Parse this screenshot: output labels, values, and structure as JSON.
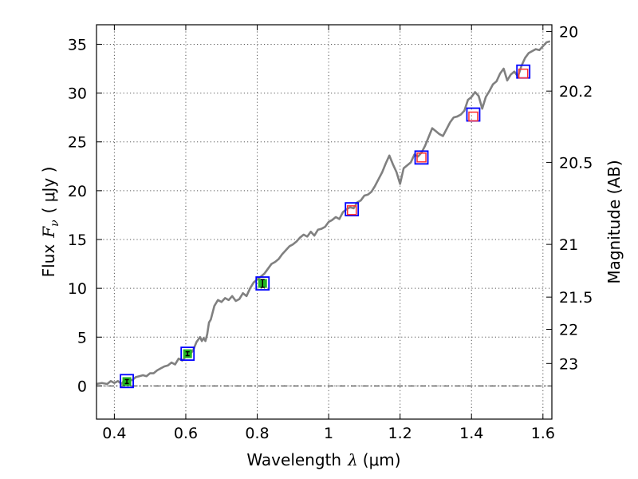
{
  "chart_data": {
    "type": "line",
    "xlabel": {
      "prefix": "Wavelength",
      "symbol": "λ",
      "unit": "(μm)"
    },
    "ylabel": {
      "prefix": "Flux",
      "symbol": "F",
      "subscript": "ν",
      "unit": "( μJy )"
    },
    "y2label": "Magnitude (AB)",
    "xlim": [
      0.35,
      1.625
    ],
    "ylim": [
      -3.4,
      37
    ],
    "xticks": [
      0.4,
      0.6,
      0.8,
      1.0,
      1.2,
      1.4,
      1.6
    ],
    "xtick_labels": [
      "0.4",
      "0.6",
      "0.8",
      "1",
      "1.2",
      "1.4",
      "1.6"
    ],
    "yticks": [
      0,
      5,
      10,
      15,
      20,
      25,
      30,
      35
    ],
    "ytick_labels": [
      "0",
      "5",
      "10",
      "15",
      "20",
      "25",
      "30",
      "35"
    ],
    "y2ticks": [
      {
        "label": "20",
        "flux": 36.3
      },
      {
        "label": "20.2",
        "flux": 30.2
      },
      {
        "label": "20.5",
        "flux": 22.9
      },
      {
        "label": "21",
        "flux": 14.5
      },
      {
        "label": "21.5",
        "flux": 9.1
      },
      {
        "label": "22",
        "flux": 5.8
      },
      {
        "label": "23",
        "flux": 2.3
      }
    ],
    "grid": true,
    "zero_line": true,
    "series": [
      {
        "kind": "spectrum",
        "color": "#808080",
        "x": [
          0.35,
          0.365,
          0.38,
          0.39,
          0.4,
          0.41,
          0.42,
          0.43,
          0.44,
          0.45,
          0.46,
          0.47,
          0.48,
          0.49,
          0.5,
          0.51,
          0.52,
          0.53,
          0.54,
          0.55,
          0.56,
          0.57,
          0.58,
          0.59,
          0.6,
          0.61,
          0.62,
          0.63,
          0.64,
          0.645,
          0.65,
          0.655,
          0.66,
          0.665,
          0.67,
          0.675,
          0.68,
          0.69,
          0.7,
          0.71,
          0.72,
          0.73,
          0.74,
          0.75,
          0.76,
          0.77,
          0.78,
          0.79,
          0.8,
          0.81,
          0.82,
          0.83,
          0.84,
          0.85,
          0.86,
          0.87,
          0.88,
          0.89,
          0.9,
          0.91,
          0.92,
          0.93,
          0.94,
          0.95,
          0.96,
          0.97,
          0.98,
          0.99,
          1.0,
          1.01,
          1.02,
          1.03,
          1.04,
          1.05,
          1.06,
          1.07,
          1.08,
          1.09,
          1.1,
          1.11,
          1.12,
          1.13,
          1.14,
          1.15,
          1.16,
          1.17,
          1.18,
          1.19,
          1.2,
          1.21,
          1.22,
          1.23,
          1.24,
          1.25,
          1.26,
          1.27,
          1.28,
          1.29,
          1.3,
          1.31,
          1.32,
          1.33,
          1.34,
          1.35,
          1.36,
          1.37,
          1.38,
          1.39,
          1.4,
          1.41,
          1.42,
          1.43,
          1.44,
          1.45,
          1.46,
          1.47,
          1.48,
          1.49,
          1.5,
          1.51,
          1.52,
          1.53,
          1.54,
          1.55,
          1.56,
          1.57,
          1.58,
          1.59,
          1.6,
          1.61,
          1.62
        ],
        "y": [
          0.2,
          0.3,
          0.2,
          0.5,
          0.3,
          0.5,
          0.2,
          0.7,
          0.6,
          0.6,
          0.9,
          1.0,
          1.1,
          1.0,
          1.3,
          1.3,
          1.6,
          1.8,
          2.0,
          2.1,
          2.4,
          2.2,
          2.8,
          2.6,
          3.0,
          3.2,
          3.6,
          4.5,
          5.0,
          4.6,
          4.9,
          4.6,
          5.3,
          6.5,
          6.8,
          7.5,
          8.2,
          8.8,
          8.6,
          9.0,
          8.8,
          9.2,
          8.7,
          8.9,
          9.5,
          9.2,
          10.0,
          10.6,
          10.9,
          11.2,
          11.5,
          12.0,
          12.5,
          12.7,
          13.0,
          13.5,
          13.9,
          14.3,
          14.5,
          14.8,
          15.2,
          15.5,
          15.3,
          15.8,
          15.4,
          16.0,
          16.1,
          16.3,
          16.8,
          17.0,
          17.3,
          17.1,
          17.8,
          18.1,
          18.3,
          18.2,
          18.8,
          19.0,
          19.5,
          19.6,
          19.9,
          20.5,
          21.2,
          21.9,
          22.8,
          23.6,
          22.7,
          21.9,
          20.7,
          22.3,
          22.6,
          22.9,
          23.7,
          23.5,
          23.9,
          24.6,
          25.5,
          26.4,
          26.1,
          25.8,
          25.6,
          26.3,
          27.0,
          27.5,
          27.6,
          27.8,
          28.2,
          29.3,
          29.6,
          30.1,
          29.7,
          28.4,
          29.6,
          30.2,
          30.9,
          31.2,
          32.0,
          32.5,
          31.3,
          31.9,
          32.2,
          31.7,
          32.8,
          33.6,
          34.1,
          34.3,
          34.5,
          34.4,
          34.8,
          35.2,
          35.3
        ]
      },
      {
        "kind": "model",
        "marker": "square-open",
        "color": "#0000ff",
        "x": [
          0.435,
          0.605,
          0.815,
          1.065,
          1.26,
          1.405,
          1.545
        ],
        "y": [
          0.5,
          3.3,
          10.5,
          18.1,
          23.4,
          27.8,
          32.2
        ]
      },
      {
        "kind": "observed",
        "marker": "square-filled",
        "color": "#22b422",
        "x": [
          0.435,
          0.605,
          0.815
        ],
        "y": [
          0.45,
          3.3,
          10.5
        ],
        "err": [
          0.2,
          0.2,
          0.4
        ]
      },
      {
        "kind": "observed",
        "marker": "square-open",
        "color": "#ff3030",
        "x": [
          1.065,
          1.26,
          1.405,
          1.545
        ],
        "y": [
          18.0,
          23.4,
          27.6,
          32.0
        ]
      }
    ]
  }
}
